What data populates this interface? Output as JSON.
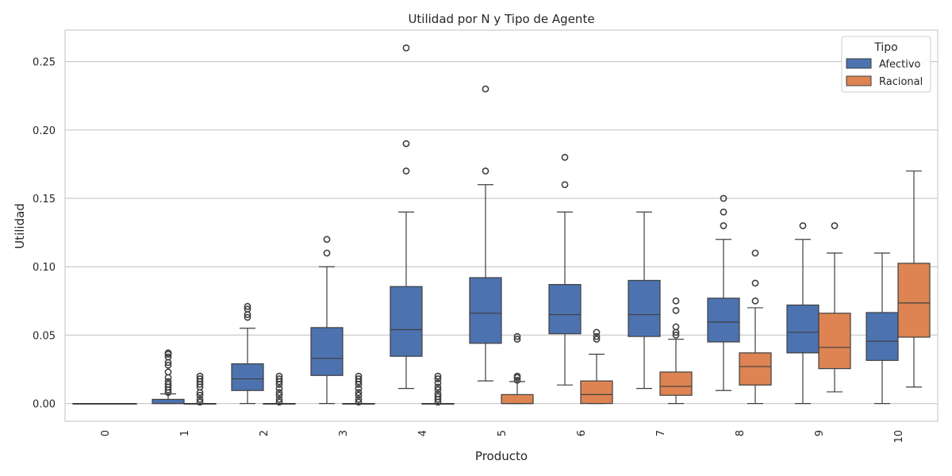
{
  "chart_data": {
    "type": "box",
    "title": "Utilidad por N y Tipo de Agente",
    "xlabel": "Producto",
    "ylabel": "Utilidad",
    "categories": [
      "0",
      "1",
      "2",
      "3",
      "4",
      "5",
      "6",
      "7",
      "8",
      "9",
      "10"
    ],
    "ylim": [
      -0.013,
      0.273
    ],
    "yticks": [
      "0.00",
      "0.05",
      "0.10",
      "0.15",
      "0.20",
      "0.25"
    ],
    "ytick_values": [
      0,
      0.05,
      0.1,
      0.15,
      0.2,
      0.25
    ],
    "grid": true,
    "legend": {
      "title": "Tipo",
      "position": "top-right"
    },
    "series": [
      {
        "name": "Afectivo",
        "color": "#4c72b0",
        "boxes": [
          {
            "whislo": 0,
            "q1": 0,
            "med": 0,
            "q3": 0,
            "whishi": 0,
            "fliers": []
          },
          {
            "whislo": 0,
            "q1": 0,
            "med": 0,
            "q3": 0.003,
            "whishi": 0.007,
            "fliers": [
              0.008,
              0.01,
              0.012,
              0.014,
              0.016,
              0.019,
              0.023,
              0.028,
              0.03,
              0.034,
              0.036,
              0.037
            ]
          },
          {
            "whislo": 0,
            "q1": 0.0095,
            "med": 0.018,
            "q3": 0.029,
            "whishi": 0.055,
            "fliers": [
              0.063,
              0.065,
              0.069,
              0.071
            ]
          },
          {
            "whislo": 0,
            "q1": 0.0205,
            "med": 0.033,
            "q3": 0.0555,
            "whishi": 0.1,
            "fliers": [
              0.11,
              0.12
            ]
          },
          {
            "whislo": 0.011,
            "q1": 0.0345,
            "med": 0.054,
            "q3": 0.0855,
            "whishi": 0.14,
            "fliers": [
              0.17,
              0.19,
              0.26
            ]
          },
          {
            "whislo": 0.0165,
            "q1": 0.044,
            "med": 0.066,
            "q3": 0.092,
            "whishi": 0.16,
            "fliers": [
              0.17,
              0.23
            ]
          },
          {
            "whislo": 0.0135,
            "q1": 0.051,
            "med": 0.065,
            "q3": 0.087,
            "whishi": 0.14,
            "fliers": [
              0.16,
              0.18
            ]
          },
          {
            "whislo": 0.011,
            "q1": 0.049,
            "med": 0.065,
            "q3": 0.09,
            "whishi": 0.14,
            "fliers": []
          },
          {
            "whislo": 0.0095,
            "q1": 0.045,
            "med": 0.0595,
            "q3": 0.077,
            "whishi": 0.12,
            "fliers": [
              0.13,
              0.14,
              0.15
            ]
          },
          {
            "whislo": 0,
            "q1": 0.037,
            "med": 0.052,
            "q3": 0.072,
            "whishi": 0.12,
            "fliers": [
              0.13
            ]
          },
          {
            "whislo": 0,
            "q1": 0.0315,
            "med": 0.0455,
            "q3": 0.0665,
            "whishi": 0.11,
            "fliers": []
          }
        ]
      },
      {
        "name": "Racional",
        "color": "#dd8452",
        "boxes": [
          {
            "whislo": 0,
            "q1": 0,
            "med": 0,
            "q3": 0,
            "whishi": 0,
            "fliers": []
          },
          {
            "whislo": 0,
            "q1": 0,
            "med": 0,
            "q3": 0,
            "whishi": 0,
            "fliers": [
              0.001,
              0.003,
              0.006,
              0.008,
              0.012,
              0.014,
              0.016,
              0.018,
              0.02
            ]
          },
          {
            "whislo": 0,
            "q1": 0,
            "med": 0,
            "q3": 0,
            "whishi": 0,
            "fliers": [
              0.001,
              0.003,
              0.006,
              0.008,
              0.011,
              0.014,
              0.016,
              0.018,
              0.02
            ]
          },
          {
            "whislo": 0,
            "q1": 0,
            "med": 0,
            "q3": 0,
            "whishi": 0,
            "fliers": [
              0.001,
              0.003,
              0.006,
              0.008,
              0.011,
              0.014,
              0.016,
              0.018,
              0.02
            ]
          },
          {
            "whislo": 0,
            "q1": 0,
            "med": 0,
            "q3": 0,
            "whishi": 0,
            "fliers": [
              0.001,
              0.003,
              0.005,
              0.007,
              0.01,
              0.012,
              0.015,
              0.018,
              0.02
            ]
          },
          {
            "whislo": 0,
            "q1": 0,
            "med": 0,
            "q3": 0.0065,
            "whishi": 0.016,
            "fliers": [
              0.017,
              0.019,
              0.02,
              0.047,
              0.049
            ]
          },
          {
            "whislo": 0,
            "q1": 0,
            "med": 0.0065,
            "q3": 0.0165,
            "whishi": 0.036,
            "fliers": [
              0.047,
              0.049,
              0.052
            ]
          },
          {
            "whislo": 0,
            "q1": 0.006,
            "med": 0.0125,
            "q3": 0.023,
            "whishi": 0.047,
            "fliers": [
              0.05,
              0.052,
              0.056,
              0.068,
              0.075
            ]
          },
          {
            "whislo": 0,
            "q1": 0.0135,
            "med": 0.027,
            "q3": 0.037,
            "whishi": 0.07,
            "fliers": [
              0.075,
              0.088,
              0.11
            ]
          },
          {
            "whislo": 0.0085,
            "q1": 0.0255,
            "med": 0.041,
            "q3": 0.066,
            "whishi": 0.11,
            "fliers": [
              0.13
            ]
          },
          {
            "whislo": 0.012,
            "q1": 0.0485,
            "med": 0.0735,
            "q3": 0.1025,
            "whishi": 0.17,
            "fliers": []
          }
        ]
      }
    ]
  }
}
